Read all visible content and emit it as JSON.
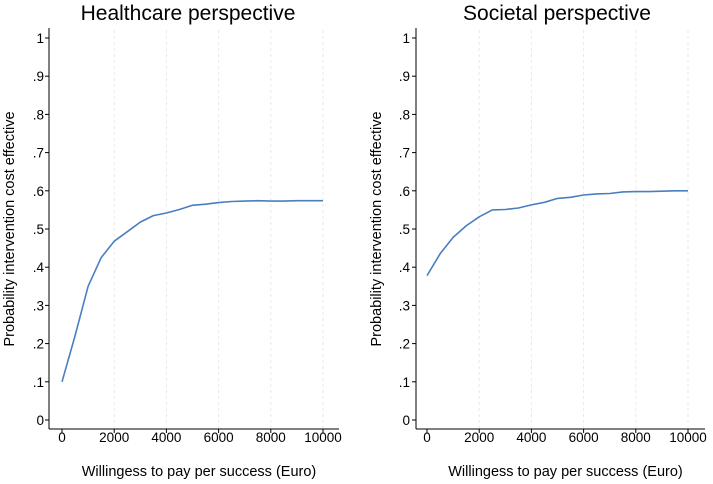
{
  "colors": {
    "series": "#4a7fbf",
    "background": "#ffffff",
    "grid": "#e8e8e8"
  },
  "chart_data": [
    {
      "type": "line",
      "title": "Healthcare perspective",
      "xlabel": "Willingess to pay per success (Euro)",
      "ylabel": "Probability intervention cost effective",
      "xlim": [
        0,
        10000
      ],
      "ylim": [
        0,
        1
      ],
      "xticks": [
        0,
        2000,
        4000,
        6000,
        8000,
        10000
      ],
      "xtick_labels": [
        "0",
        "2000",
        "4000",
        "6000",
        "8000",
        "10000"
      ],
      "yticks": [
        0,
        0.1,
        0.2,
        0.3,
        0.4,
        0.5,
        0.6,
        0.7,
        0.8,
        0.9,
        1
      ],
      "ytick_labels": [
        "0",
        ".1",
        ".2",
        ".3",
        ".4",
        ".5",
        ".6",
        ".7",
        ".8",
        ".9",
        "1"
      ],
      "grid": "vertical dashed",
      "x": [
        0,
        500,
        1000,
        1500,
        2000,
        2500,
        3000,
        3500,
        4000,
        4500,
        5000,
        5500,
        6000,
        6500,
        7000,
        7500,
        8000,
        8500,
        9000,
        9500,
        10000
      ],
      "values": [
        0.1,
        0.22,
        0.35,
        0.425,
        0.468,
        0.493,
        0.518,
        0.535,
        0.542,
        0.551,
        0.562,
        0.565,
        0.569,
        0.572,
        0.573,
        0.574,
        0.573,
        0.573,
        0.574,
        0.574,
        0.574
      ]
    },
    {
      "type": "line",
      "title": "Societal perspective",
      "xlabel": "Willingess to pay per success (Euro)",
      "ylabel": "Probability intervention cost effective",
      "xlim": [
        0,
        10000
      ],
      "ylim": [
        0,
        1
      ],
      "xticks": [
        0,
        2000,
        4000,
        6000,
        8000,
        10000
      ],
      "xtick_labels": [
        "0",
        "2000",
        "4000",
        "6000",
        "8000",
        "10000"
      ],
      "yticks": [
        0,
        0.1,
        0.2,
        0.3,
        0.4,
        0.5,
        0.6,
        0.7,
        0.8,
        0.9,
        1
      ],
      "ytick_labels": [
        "0",
        ".1",
        ".2",
        ".3",
        ".4",
        ".5",
        ".6",
        ".7",
        ".8",
        ".9",
        "1"
      ],
      "grid": "vertical dashed",
      "x": [
        0,
        500,
        1000,
        1500,
        2000,
        2500,
        3000,
        3500,
        4000,
        4500,
        5000,
        5500,
        6000,
        6500,
        7000,
        7500,
        8000,
        8500,
        9000,
        9500,
        10000
      ],
      "values": [
        0.378,
        0.435,
        0.478,
        0.508,
        0.532,
        0.55,
        0.551,
        0.555,
        0.563,
        0.57,
        0.58,
        0.583,
        0.589,
        0.592,
        0.593,
        0.597,
        0.598,
        0.598,
        0.599,
        0.6,
        0.6
      ]
    }
  ]
}
